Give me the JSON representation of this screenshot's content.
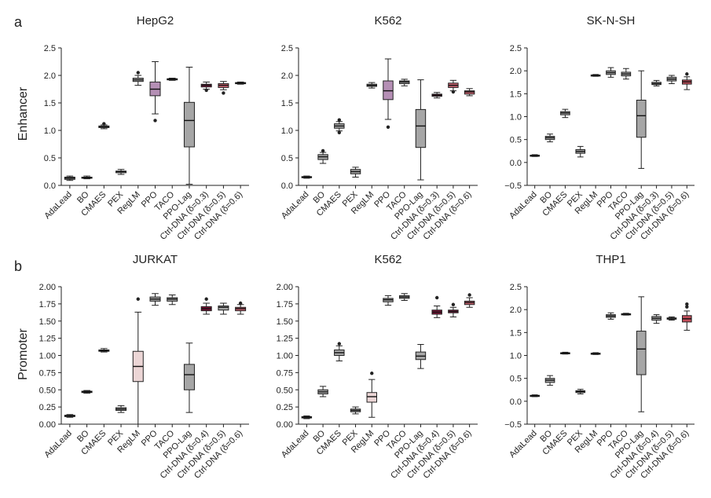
{
  "panel_labels": [
    "a",
    "b"
  ],
  "row_labels": [
    "Enhancer",
    "Promoter"
  ],
  "colors": {
    "grey": "#a6a6a6",
    "purple": "#b58fb5",
    "pink": "#ecd6d6",
    "red": "#c24d5a",
    "redlight": "#cc6270",
    "maroon": "#7a1236",
    "maroon2": "#8c1b45",
    "dark": "#222222"
  },
  "chart_data": [
    {
      "type": "box",
      "row": 0,
      "title": "HepG2",
      "ylim": [
        0,
        2.5
      ],
      "yticks": [
        "0.0",
        "0.5",
        "1.0",
        "1.5",
        "2.0",
        "2.5"
      ],
      "categories": [
        "AdaLead",
        "BO",
        "CMAES",
        "PEX",
        "RegLM",
        "PPO",
        "TACO",
        "PPO-Lag",
        "Ctrl-DNA (δ=0.3)",
        "Ctrl-DNA (δ=0.5)",
        "Ctrl-DNA (δ=0.6)"
      ],
      "boxes": [
        {
          "median": 0.13,
          "q1": 0.11,
          "q3": 0.15,
          "wlow": 0.09,
          "whigh": 0.17,
          "outliers": [],
          "color": "grey"
        },
        {
          "median": 0.14,
          "q1": 0.13,
          "q3": 0.15,
          "wlow": 0.12,
          "whigh": 0.17,
          "outliers": [],
          "color": "grey"
        },
        {
          "median": 1.07,
          "q1": 1.05,
          "q3": 1.08,
          "wlow": 1.03,
          "whigh": 1.1,
          "outliers": [
            1.12
          ],
          "color": "grey"
        },
        {
          "median": 0.25,
          "q1": 0.23,
          "q3": 0.26,
          "wlow": 0.2,
          "whigh": 0.29,
          "outliers": [],
          "color": "grey"
        },
        {
          "median": 1.92,
          "q1": 1.89,
          "q3": 1.95,
          "wlow": 1.82,
          "whigh": 2.0,
          "outliers": [
            2.05
          ],
          "color": "grey"
        },
        {
          "median": 1.75,
          "q1": 1.63,
          "q3": 1.88,
          "wlow": 1.3,
          "whigh": 2.25,
          "outliers": [
            1.18
          ],
          "color": "purple"
        },
        {
          "median": 1.93,
          "q1": 1.92,
          "q3": 1.94,
          "wlow": 1.91,
          "whigh": 1.95,
          "outliers": [],
          "color": "grey"
        },
        {
          "median": 1.18,
          "q1": 0.7,
          "q3": 1.51,
          "wlow": 0.02,
          "whigh": 2.15,
          "outliers": [],
          "color": "grey"
        },
        {
          "median": 1.82,
          "q1": 1.79,
          "q3": 1.84,
          "wlow": 1.75,
          "whigh": 1.88,
          "outliers": [
            1.73
          ],
          "color": "maroon2"
        },
        {
          "median": 1.82,
          "q1": 1.78,
          "q3": 1.85,
          "wlow": 1.74,
          "whigh": 1.89,
          "outliers": [
            1.68
          ],
          "color": "redlight"
        },
        {
          "median": 1.86,
          "q1": 1.85,
          "q3": 1.87,
          "wlow": 1.84,
          "whigh": 1.88,
          "outliers": [],
          "color": "redlight"
        }
      ]
    },
    {
      "type": "box",
      "row": 0,
      "title": "K562",
      "ylim": [
        0,
        2.5
      ],
      "yticks": [
        "0.0",
        "0.5",
        "1.0",
        "1.5",
        "2.0",
        "2.5"
      ],
      "categories": [
        "AdaLead",
        "BO",
        "CMAES",
        "PEX",
        "RegLM",
        "PPO",
        "TACO",
        "PPO-Lag",
        "Ctrl-DNA (δ=0.3)",
        "Ctrl-DNA (δ=0.5)",
        "Ctrl-DNA (δ=0.6)"
      ],
      "boxes": [
        {
          "median": 0.15,
          "q1": 0.14,
          "q3": 0.16,
          "wlow": 0.13,
          "whigh": 0.17,
          "outliers": [],
          "color": "grey"
        },
        {
          "median": 0.52,
          "q1": 0.47,
          "q3": 0.56,
          "wlow": 0.4,
          "whigh": 0.6,
          "outliers": [
            0.63
          ],
          "color": "grey"
        },
        {
          "median": 1.08,
          "q1": 1.04,
          "q3": 1.12,
          "wlow": 0.99,
          "whigh": 1.16,
          "outliers": [
            0.96,
            1.19
          ],
          "color": "grey"
        },
        {
          "median": 0.25,
          "q1": 0.21,
          "q3": 0.29,
          "wlow": 0.15,
          "whigh": 0.33,
          "outliers": [],
          "color": "grey"
        },
        {
          "median": 1.82,
          "q1": 1.8,
          "q3": 1.84,
          "wlow": 1.77,
          "whigh": 1.87,
          "outliers": [],
          "color": "grey"
        },
        {
          "median": 1.72,
          "q1": 1.56,
          "q3": 1.9,
          "wlow": 1.2,
          "whigh": 2.3,
          "outliers": [
            1.06
          ],
          "color": "purple"
        },
        {
          "median": 1.88,
          "q1": 1.85,
          "q3": 1.9,
          "wlow": 1.81,
          "whigh": 1.93,
          "outliers": [],
          "color": "grey"
        },
        {
          "median": 1.08,
          "q1": 0.69,
          "q3": 1.38,
          "wlow": 0.1,
          "whigh": 1.92,
          "outliers": [],
          "color": "grey"
        },
        {
          "median": 1.64,
          "q1": 1.62,
          "q3": 1.66,
          "wlow": 1.59,
          "whigh": 1.69,
          "outliers": [],
          "color": "maroon2"
        },
        {
          "median": 1.82,
          "q1": 1.78,
          "q3": 1.86,
          "wlow": 1.72,
          "whigh": 1.91,
          "outliers": [
            1.7
          ],
          "color": "redlight"
        },
        {
          "median": 1.7,
          "q1": 1.66,
          "q3": 1.72,
          "wlow": 1.63,
          "whigh": 1.76,
          "outliers": [],
          "color": "redlight"
        }
      ]
    },
    {
      "type": "box",
      "row": 0,
      "title": "SK-N-SH",
      "ylim": [
        -0.5,
        2.5
      ],
      "yticks": [
        "−0.5",
        "0.0",
        "0.5",
        "1.0",
        "1.5",
        "2.0",
        "2.5"
      ],
      "categories": [
        "AdaLead",
        "BO",
        "CMAES",
        "PEX",
        "RegLM",
        "PPO",
        "TACO",
        "PPO-Lag",
        "Ctrl-DNA (δ=0.3)",
        "Ctrl-DNA (δ=0.5)",
        "Ctrl-DNA (δ=0.6)"
      ],
      "boxes": [
        {
          "median": 0.15,
          "q1": 0.14,
          "q3": 0.16,
          "wlow": 0.13,
          "whigh": 0.17,
          "outliers": [],
          "color": "grey"
        },
        {
          "median": 0.54,
          "q1": 0.5,
          "q3": 0.57,
          "wlow": 0.45,
          "whigh": 0.62,
          "outliers": [],
          "color": "grey"
        },
        {
          "median": 1.08,
          "q1": 1.04,
          "q3": 1.11,
          "wlow": 0.98,
          "whigh": 1.16,
          "outliers": [],
          "color": "grey"
        },
        {
          "median": 0.24,
          "q1": 0.2,
          "q3": 0.28,
          "wlow": 0.12,
          "whigh": 0.35,
          "outliers": [],
          "color": "grey"
        },
        {
          "median": 1.9,
          "q1": 1.89,
          "q3": 1.91,
          "wlow": 1.88,
          "whigh": 1.92,
          "outliers": [],
          "color": "grey"
        },
        {
          "median": 1.96,
          "q1": 1.92,
          "q3": 2.0,
          "wlow": 1.86,
          "whigh": 2.07,
          "outliers": [],
          "color": "grey"
        },
        {
          "median": 1.93,
          "q1": 1.89,
          "q3": 1.97,
          "wlow": 1.82,
          "whigh": 2.05,
          "outliers": [],
          "color": "grey"
        },
        {
          "median": 1.02,
          "q1": 0.55,
          "q3": 1.36,
          "wlow": -0.13,
          "whigh": 2.0,
          "outliers": [],
          "color": "grey"
        },
        {
          "median": 1.72,
          "q1": 1.7,
          "q3": 1.75,
          "wlow": 1.67,
          "whigh": 1.79,
          "outliers": [],
          "color": "grey"
        },
        {
          "median": 1.82,
          "q1": 1.78,
          "q3": 1.86,
          "wlow": 1.72,
          "whigh": 1.9,
          "outliers": [],
          "color": "grey"
        },
        {
          "median": 1.76,
          "q1": 1.71,
          "q3": 1.8,
          "wlow": 1.59,
          "whigh": 1.87,
          "outliers": [
            1.93
          ],
          "color": "red"
        }
      ]
    },
    {
      "type": "box",
      "row": 1,
      "title": "JURKAT",
      "ylim": [
        0,
        2.0
      ],
      "yticks": [
        "0.00",
        "0.25",
        "0.50",
        "0.75",
        "1.00",
        "1.25",
        "1.50",
        "1.75",
        "2.00"
      ],
      "categories": [
        "AdaLead",
        "BO",
        "CMAES",
        "PEX",
        "RegLM",
        "PPO",
        "TACO",
        "PPO-Lag",
        "Ctrl-DNA (δ=0.4)",
        "Ctrl-DNA (δ=0.5)",
        "Ctrl-DNA (δ=0.6)"
      ],
      "boxes": [
        {
          "median": 0.12,
          "q1": 0.11,
          "q3": 0.13,
          "wlow": 0.1,
          "whigh": 0.14,
          "outliers": [],
          "color": "grey"
        },
        {
          "median": 0.47,
          "q1": 0.46,
          "q3": 0.48,
          "wlow": 0.45,
          "whigh": 0.49,
          "outliers": [],
          "color": "grey"
        },
        {
          "median": 1.07,
          "q1": 1.06,
          "q3": 1.08,
          "wlow": 1.05,
          "whigh": 1.1,
          "outliers": [],
          "color": "grey"
        },
        {
          "median": 0.22,
          "q1": 0.2,
          "q3": 0.24,
          "wlow": 0.17,
          "whigh": 0.27,
          "outliers": [],
          "color": "grey"
        },
        {
          "median": 0.84,
          "q1": 0.62,
          "q3": 1.06,
          "wlow": 0.0,
          "whigh": 1.63,
          "outliers": [
            1.82
          ],
          "color": "pink"
        },
        {
          "median": 1.82,
          "q1": 1.79,
          "q3": 1.85,
          "wlow": 1.73,
          "whigh": 1.9,
          "outliers": [],
          "color": "grey"
        },
        {
          "median": 1.82,
          "q1": 1.79,
          "q3": 1.84,
          "wlow": 1.74,
          "whigh": 1.88,
          "outliers": [],
          "color": "grey"
        },
        {
          "median": 0.72,
          "q1": 0.5,
          "q3": 0.87,
          "wlow": 0.17,
          "whigh": 1.18,
          "outliers": [],
          "color": "grey"
        },
        {
          "median": 1.68,
          "q1": 1.65,
          "q3": 1.71,
          "wlow": 1.6,
          "whigh": 1.76,
          "outliers": [
            1.82
          ],
          "color": "maroon"
        },
        {
          "median": 1.7,
          "q1": 1.66,
          "q3": 1.72,
          "wlow": 1.6,
          "whigh": 1.76,
          "outliers": [],
          "color": "grey"
        },
        {
          "median": 1.68,
          "q1": 1.65,
          "q3": 1.7,
          "wlow": 1.6,
          "whigh": 1.74,
          "outliers": [
            1.76
          ],
          "color": "redlight"
        }
      ]
    },
    {
      "type": "box",
      "row": 1,
      "title": "K562",
      "ylim": [
        0,
        2.0
      ],
      "yticks": [
        "0.00",
        "0.25",
        "0.50",
        "0.75",
        "1.00",
        "1.25",
        "1.50",
        "1.75",
        "2.00"
      ],
      "categories": [
        "AdaLead",
        "BO",
        "CMAES",
        "PEX",
        "RegLM",
        "PPO",
        "TACO",
        "PPO-Lag",
        "Ctrl-DNA (δ=0.4)",
        "Ctrl-DNA (δ=0.5)",
        "Ctrl-DNA (δ=0.6)"
      ],
      "boxes": [
        {
          "median": 0.1,
          "q1": 0.09,
          "q3": 0.11,
          "wlow": 0.08,
          "whigh": 0.12,
          "outliers": [],
          "color": "grey"
        },
        {
          "median": 0.47,
          "q1": 0.44,
          "q3": 0.5,
          "wlow": 0.4,
          "whigh": 0.55,
          "outliers": [],
          "color": "grey"
        },
        {
          "median": 1.04,
          "q1": 1.0,
          "q3": 1.08,
          "wlow": 0.92,
          "whigh": 1.14,
          "outliers": [
            1.17
          ],
          "color": "grey"
        },
        {
          "median": 0.2,
          "q1": 0.18,
          "q3": 0.22,
          "wlow": 0.15,
          "whigh": 0.25,
          "outliers": [],
          "color": "grey"
        },
        {
          "median": 0.4,
          "q1": 0.32,
          "q3": 0.46,
          "wlow": 0.1,
          "whigh": 0.65,
          "outliers": [
            0.74
          ],
          "color": "pink"
        },
        {
          "median": 1.81,
          "q1": 1.78,
          "q3": 1.83,
          "wlow": 1.73,
          "whigh": 1.87,
          "outliers": [],
          "color": "grey"
        },
        {
          "median": 1.85,
          "q1": 1.83,
          "q3": 1.87,
          "wlow": 1.8,
          "whigh": 1.9,
          "outliers": [],
          "color": "grey"
        },
        {
          "median": 0.99,
          "q1": 0.94,
          "q3": 1.05,
          "wlow": 0.81,
          "whigh": 1.16,
          "outliers": [],
          "color": "grey"
        },
        {
          "median": 1.63,
          "q1": 1.6,
          "q3": 1.66,
          "wlow": 1.55,
          "whigh": 1.72,
          "outliers": [
            1.84
          ],
          "color": "maroon"
        },
        {
          "median": 1.64,
          "q1": 1.62,
          "q3": 1.66,
          "wlow": 1.56,
          "whigh": 1.7,
          "outliers": [
            1.74
          ],
          "color": "maroon2"
        },
        {
          "median": 1.77,
          "q1": 1.74,
          "q3": 1.79,
          "wlow": 1.7,
          "whigh": 1.84,
          "outliers": [
            1.88
          ],
          "color": "redlight"
        }
      ]
    },
    {
      "type": "box",
      "row": 1,
      "title": "THP1",
      "ylim": [
        -0.5,
        2.5
      ],
      "yticks": [
        "−0.5",
        "0.0",
        "0.5",
        "1.0",
        "1.5",
        "2.0",
        "2.5"
      ],
      "categories": [
        "AdaLead",
        "BO",
        "CMAES",
        "PEX",
        "RegLM",
        "PPO",
        "TACO",
        "PPO-Lag",
        "Ctrl-DNA (δ=0.4)",
        "Ctrl-DNA (δ=0.5)",
        "Ctrl-DNA (δ=0.6)"
      ],
      "boxes": [
        {
          "median": 0.12,
          "q1": 0.11,
          "q3": 0.13,
          "wlow": 0.1,
          "whigh": 0.14,
          "outliers": [],
          "color": "grey"
        },
        {
          "median": 0.46,
          "q1": 0.41,
          "q3": 0.5,
          "wlow": 0.35,
          "whigh": 0.56,
          "outliers": [],
          "color": "grey"
        },
        {
          "median": 1.05,
          "q1": 1.04,
          "q3": 1.06,
          "wlow": 1.03,
          "whigh": 1.07,
          "outliers": [],
          "color": "grey"
        },
        {
          "median": 0.21,
          "q1": 0.19,
          "q3": 0.23,
          "wlow": 0.16,
          "whigh": 0.26,
          "outliers": [],
          "color": "grey"
        },
        {
          "median": 1.04,
          "q1": 1.03,
          "q3": 1.05,
          "wlow": 1.02,
          "whigh": 1.06,
          "outliers": [],
          "color": "grey"
        },
        {
          "median": 1.86,
          "q1": 1.83,
          "q3": 1.89,
          "wlow": 1.79,
          "whigh": 1.93,
          "outliers": [],
          "color": "grey"
        },
        {
          "median": 1.9,
          "q1": 1.89,
          "q3": 1.91,
          "wlow": 1.88,
          "whigh": 1.92,
          "outliers": [],
          "color": "grey"
        },
        {
          "median": 1.14,
          "q1": 0.58,
          "q3": 1.53,
          "wlow": -0.23,
          "whigh": 2.28,
          "outliers": [],
          "color": "grey"
        },
        {
          "median": 1.81,
          "q1": 1.77,
          "q3": 1.85,
          "wlow": 1.7,
          "whigh": 1.89,
          "outliers": [],
          "color": "grey"
        },
        {
          "median": 1.8,
          "q1": 1.79,
          "q3": 1.82,
          "wlow": 1.77,
          "whigh": 1.84,
          "outliers": [],
          "color": "grey"
        },
        {
          "median": 1.8,
          "q1": 1.73,
          "q3": 1.87,
          "wlow": 1.55,
          "whigh": 1.97,
          "outliers": [
            2.06,
            2.12
          ],
          "color": "red"
        }
      ]
    }
  ]
}
